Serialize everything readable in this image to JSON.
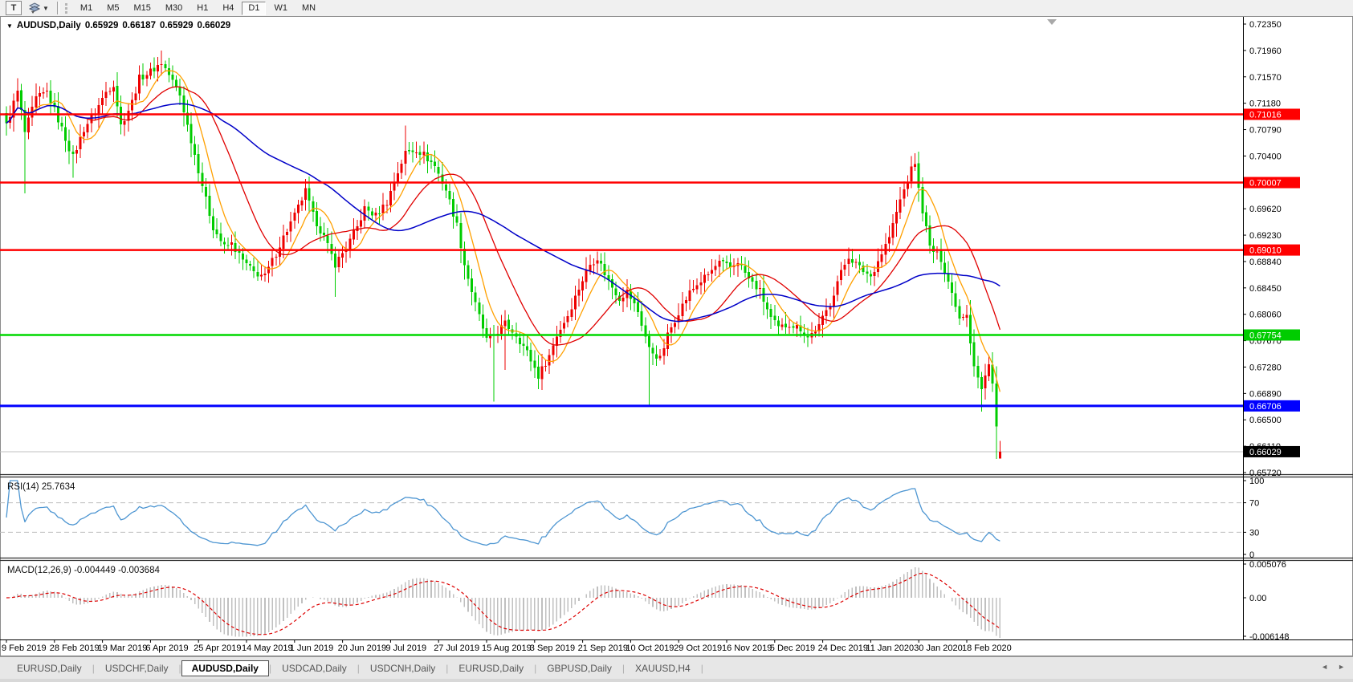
{
  "toolbar": {
    "text_tool_label": "T",
    "timeframes": [
      "M1",
      "M5",
      "M15",
      "M30",
      "H1",
      "H4",
      "D1",
      "W1",
      "MN"
    ],
    "active_timeframe": "D1"
  },
  "chart_header": {
    "collapse_icon": "▼",
    "title": "AUDUSD,Daily",
    "open": "0.65929",
    "high": "0.66187",
    "low": "0.65929",
    "close": "0.66029"
  },
  "price_axis": {
    "ticks": [
      {
        "label": "0.72350",
        "price": 0.7235
      },
      {
        "label": "0.71960",
        "price": 0.7196
      },
      {
        "label": "0.71570",
        "price": 0.7157
      },
      {
        "label": "0.71180",
        "price": 0.7118
      },
      {
        "label": "0.70790",
        "price": 0.7079
      },
      {
        "label": "0.70400",
        "price": 0.704
      },
      {
        "label": "0.69620",
        "price": 0.6962
      },
      {
        "label": "0.69230",
        "price": 0.6923
      },
      {
        "label": "0.68840",
        "price": 0.6884
      },
      {
        "label": "0.68450",
        "price": 0.6845
      },
      {
        "label": "0.68060",
        "price": 0.6806
      },
      {
        "label": "0.67670",
        "price": 0.6767
      },
      {
        "label": "0.67280",
        "price": 0.6728
      },
      {
        "label": "0.66890",
        "price": 0.6689
      },
      {
        "label": "0.66500",
        "price": 0.665
      },
      {
        "label": "0.66110",
        "price": 0.6611
      },
      {
        "label": "0.65720",
        "price": 0.6572
      }
    ],
    "badges": [
      {
        "label": "0.71016",
        "price": 0.71016,
        "color": "#FF0000"
      },
      {
        "label": "0.70007",
        "price": 0.70007,
        "color": "#FF0000"
      },
      {
        "label": "0.69010",
        "price": 0.6901,
        "color": "#FF0000"
      },
      {
        "label": "0.67754",
        "price": 0.67754,
        "color": "#00CC00"
      },
      {
        "label": "0.66706",
        "price": 0.66706,
        "color": "#0000FF"
      },
      {
        "label": "0.66029",
        "price": 0.66029,
        "color": "#000000"
      }
    ]
  },
  "date_axis": [
    "9 Feb 2019",
    "28 Feb 2019",
    "19 Mar 2019",
    "6 Apr 2019",
    "25 Apr 2019",
    "14 May 2019",
    "1 Jun 2019",
    "20 Jun 2019",
    "9 Jul 2019",
    "27 Jul 2019",
    "15 Aug 2019",
    "3 Sep 2019",
    "21 Sep 2019",
    "10 Oct 2019",
    "29 Oct 2019",
    "16 Nov 2019",
    "5 Dec 2019",
    "24 Dec 2019",
    "11 Jan 2020",
    "30 Jan 2020",
    "18 Feb 2020"
  ],
  "chart_data": {
    "type": "candlestick",
    "symbol": "AUDUSD",
    "period": "Daily",
    "bull_color": "#EE0000",
    "bear_color": "#00CC00",
    "n": 270,
    "price_range": {
      "top": 0.7235,
      "bottom": 0.6572
    },
    "close_anchors": [
      [
        0,
        0.7085
      ],
      [
        3,
        0.7135
      ],
      [
        5,
        0.7075
      ],
      [
        8,
        0.7125
      ],
      [
        11,
        0.7135
      ],
      [
        15,
        0.708
      ],
      [
        18,
        0.7038
      ],
      [
        21,
        0.708
      ],
      [
        24,
        0.7105
      ],
      [
        27,
        0.7135
      ],
      [
        29,
        0.7147
      ],
      [
        31,
        0.7085
      ],
      [
        34,
        0.712
      ],
      [
        36,
        0.7155
      ],
      [
        39,
        0.7165
      ],
      [
        42,
        0.7178
      ],
      [
        44,
        0.716
      ],
      [
        47,
        0.713
      ],
      [
        49,
        0.7085
      ],
      [
        51,
        0.7042
      ],
      [
        54,
        0.6975
      ],
      [
        56,
        0.6935
      ],
      [
        59,
        0.6905
      ],
      [
        61,
        0.691
      ],
      [
        64,
        0.6885
      ],
      [
        67,
        0.6868
      ],
      [
        70,
        0.6862
      ],
      [
        72,
        0.6885
      ],
      [
        75,
        0.692
      ],
      [
        78,
        0.6952
      ],
      [
        81,
        0.6988
      ],
      [
        83,
        0.6952
      ],
      [
        86,
        0.692
      ],
      [
        89,
        0.688
      ],
      [
        92,
        0.6905
      ],
      [
        95,
        0.6935
      ],
      [
        97,
        0.6962
      ],
      [
        100,
        0.6952
      ],
      [
        103,
        0.6972
      ],
      [
        105,
        0.7002
      ],
      [
        108,
        0.7045
      ],
      [
        111,
        0.705
      ],
      [
        113,
        0.7042
      ],
      [
        116,
        0.7025
      ],
      [
        119,
        0.699
      ],
      [
        122,
        0.6938
      ],
      [
        124,
        0.688
      ],
      [
        127,
        0.682
      ],
      [
        130,
        0.6768
      ],
      [
        132,
        0.6775
      ],
      [
        135,
        0.6792
      ],
      [
        138,
        0.6776
      ],
      [
        141,
        0.675
      ],
      [
        144,
        0.6715
      ],
      [
        147,
        0.6745
      ],
      [
        149,
        0.6775
      ],
      [
        152,
        0.6805
      ],
      [
        155,
        0.6845
      ],
      [
        158,
        0.688
      ],
      [
        160,
        0.689
      ],
      [
        163,
        0.6855
      ],
      [
        166,
        0.683
      ],
      [
        168,
        0.684
      ],
      [
        171,
        0.681
      ],
      [
        174,
        0.6755
      ],
      [
        177,
        0.674
      ],
      [
        179,
        0.6775
      ],
      [
        182,
        0.681
      ],
      [
        185,
        0.6838
      ],
      [
        187,
        0.685
      ],
      [
        190,
        0.6865
      ],
      [
        193,
        0.6882
      ],
      [
        196,
        0.6875
      ],
      [
        198,
        0.6885
      ],
      [
        201,
        0.6858
      ],
      [
        204,
        0.684
      ],
      [
        207,
        0.68
      ],
      [
        209,
        0.6785
      ],
      [
        212,
        0.6792
      ],
      [
        215,
        0.6785
      ],
      [
        217,
        0.6772
      ],
      [
        220,
        0.6788
      ],
      [
        223,
        0.6822
      ],
      [
        225,
        0.6855
      ],
      [
        228,
        0.6892
      ],
      [
        231,
        0.6875
      ],
      [
        234,
        0.6862
      ],
      [
        236,
        0.6885
      ],
      [
        239,
        0.692
      ],
      [
        242,
        0.6975
      ],
      [
        245,
        0.702
      ],
      [
        246,
        0.7031
      ],
      [
        247,
        0.699
      ],
      [
        248,
        0.696
      ],
      [
        250,
        0.6905
      ],
      [
        253,
        0.6888
      ],
      [
        255,
        0.6855
      ],
      [
        258,
        0.68
      ],
      [
        260,
        0.6806
      ],
      [
        261,
        0.6764
      ],
      [
        262,
        0.673
      ],
      [
        264,
        0.6695
      ],
      [
        265,
        0.6715
      ],
      [
        266,
        0.6732
      ],
      [
        267,
        0.6705
      ],
      [
        268,
        0.664
      ],
      [
        269,
        0.66029
      ]
    ],
    "wick_overrides": {
      "5": {
        "low": 0.6985
      },
      "18": {
        "low": 0.7008
      },
      "42": {
        "high": 0.7196
      },
      "89": {
        "low": 0.6832
      },
      "108": {
        "high": 0.7085
      },
      "132": {
        "low": 0.6677
      },
      "135": {
        "low": 0.6724
      },
      "174": {
        "low": 0.667
      },
      "245": {
        "high": 0.704
      },
      "264": {
        "low": 0.6662
      },
      "268": {
        "low": 0.6592
      }
    },
    "last_candle": {
      "open": 0.65929,
      "high": 0.66187,
      "low": 0.65929,
      "close": 0.66029
    },
    "moving_averages": [
      {
        "period": 8,
        "color": "#FFA000"
      },
      {
        "period": 20,
        "color": "#E00000"
      },
      {
        "period": 55,
        "color": "#0000C8"
      }
    ],
    "hlines": [
      {
        "price": 0.71016,
        "color": "#FF0000",
        "width": 2.5
      },
      {
        "price": 0.70007,
        "color": "#FF0000",
        "width": 2.5
      },
      {
        "price": 0.6901,
        "color": "#FF0000",
        "width": 2.5
      },
      {
        "price": 0.67754,
        "color": "#00D800",
        "width": 2.5
      },
      {
        "price": 0.66706,
        "color": "#0000FF",
        "width": 3
      }
    ],
    "current_price_line": {
      "price": 0.66029,
      "color": "#C0C0C0"
    }
  },
  "rsi_panel": {
    "label": "RSI(14) 25.7634",
    "period": 14,
    "last_value": 25.7634,
    "levels": [
      "100",
      "70",
      "30",
      "0"
    ],
    "overbought": 70,
    "oversold": 30,
    "line_color": "#4E96D2"
  },
  "macd_panel": {
    "label": "MACD(12,26,9) -0.004449 -0.003684",
    "last_main": -0.004449,
    "last_signal": -0.003684,
    "axis_max": "0.005076",
    "axis_zero": "0.00",
    "axis_min": "-0.006148",
    "histogram_color": "#C0C0C0",
    "signal_color": "#DD0000"
  },
  "tabs": {
    "items": [
      "EURUSD,Daily",
      "USDCHF,Daily",
      "AUDUSD,Daily",
      "USDCAD,Daily",
      "USDCNH,Daily",
      "EURUSD,Daily",
      "GBPUSD,Daily",
      "XAUUSD,H4"
    ],
    "active_index": 2
  },
  "scrollbar": {
    "left_arrow": "◄",
    "right_arrow": "►"
  }
}
